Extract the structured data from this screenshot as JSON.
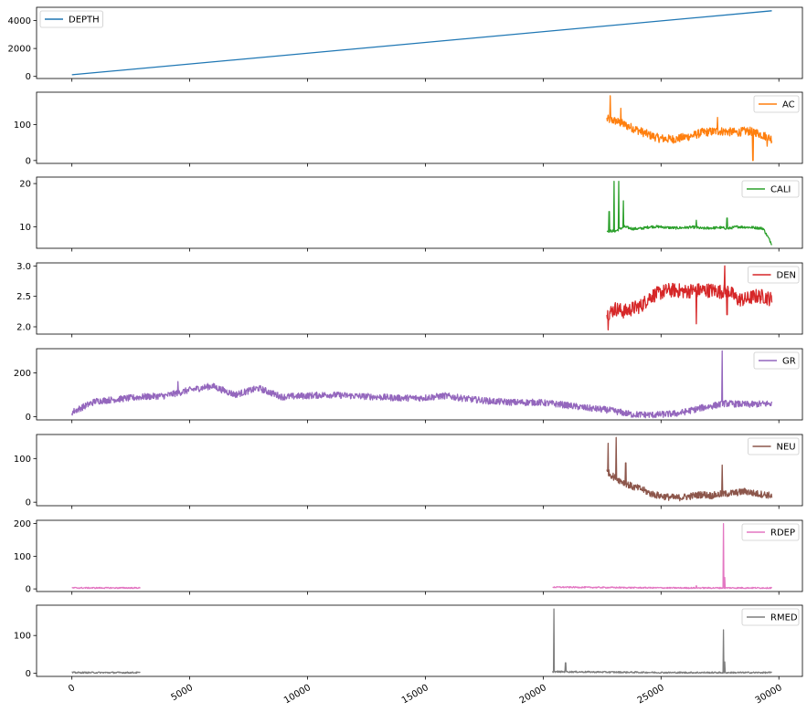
{
  "chart_data": [
    {
      "type": "line",
      "series": [
        {
          "name": "DEPTH",
          "color": "#1f77b4",
          "x": [
            0,
            29700
          ],
          "y": [
            120,
            4700
          ]
        }
      ],
      "xlim": [
        -1500,
        31000
      ],
      "ylim": [
        -150,
        4950
      ],
      "yticks": [
        {
          "value": 0,
          "label": "0"
        },
        {
          "value": 2000,
          "label": "2000"
        },
        {
          "value": 4000,
          "label": "4000"
        }
      ],
      "legend_loc": "upper left"
    },
    {
      "type": "line",
      "series": [
        {
          "name": "AC",
          "color": "#ff7f0e",
          "x_range": [
            22700,
            29700
          ],
          "y_base": [
            115,
            110,
            100,
            90,
            80,
            70,
            62,
            60,
            60,
            65,
            70,
            78,
            80,
            82,
            80,
            78,
            82,
            80,
            70,
            60
          ],
          "noise": 12,
          "spikes": [
            [
              22850,
              180
            ],
            [
              23300,
              145
            ],
            [
              27400,
              120
            ],
            [
              28900,
              0
            ],
            [
              29500,
              40
            ]
          ]
        }
      ],
      "xlim": [
        -1500,
        31000
      ],
      "ylim": [
        -8,
        190
      ],
      "yticks": [
        {
          "value": 0,
          "label": "0"
        },
        {
          "value": 100,
          "label": "100"
        }
      ],
      "legend_loc": "upper right"
    },
    {
      "type": "line",
      "series": [
        {
          "name": "CALI",
          "color": "#2ca02c",
          "x_range": [
            22700,
            29700
          ],
          "y_base": [
            9,
            9,
            10,
            9.5,
            9.6,
            10,
            10,
            9.8,
            9.7,
            9.8,
            9.9,
            9.6,
            9.7,
            9.8,
            9.6,
            10,
            9.9,
            9.8,
            9.6,
            6
          ],
          "noise": 0.3,
          "spikes": [
            [
              22800,
              13.5
            ],
            [
              23000,
              20.5
            ],
            [
              23200,
              20.5
            ],
            [
              23400,
              16
            ],
            [
              26500,
              11.5
            ],
            [
              27800,
              12
            ]
          ]
        }
      ],
      "xlim": [
        -1500,
        31000
      ],
      "ylim": [
        5,
        21.5
      ],
      "yticks": [
        {
          "value": 10,
          "label": "10"
        },
        {
          "value": 20,
          "label": "20"
        }
      ],
      "legend_loc": "upper right"
    },
    {
      "type": "line",
      "series": [
        {
          "name": "DEN",
          "color": "#d62728",
          "x_range": [
            22700,
            29700
          ],
          "y_base": [
            2.2,
            2.3,
            2.25,
            2.3,
            2.35,
            2.5,
            2.55,
            2.6,
            2.6,
            2.58,
            2.6,
            2.6,
            2.6,
            2.58,
            2.6,
            2.45,
            2.45,
            2.5,
            2.5,
            2.45
          ],
          "noise": 0.12,
          "spikes": [
            [
              22750,
              1.95
            ],
            [
              27700,
              3.0
            ],
            [
              26500,
              2.05
            ],
            [
              27800,
              2.2
            ]
          ]
        }
      ],
      "xlim": [
        -1500,
        31000
      ],
      "ylim": [
        1.88,
        3.05
      ],
      "yticks": [
        {
          "value": 2.0,
          "label": "2.0"
        },
        {
          "value": 2.5,
          "label": "2.5"
        },
        {
          "value": 3.0,
          "label": "3.0"
        }
      ],
      "legend_loc": "upper right"
    },
    {
      "type": "line",
      "series": [
        {
          "name": "GR",
          "color": "#9467bd",
          "x_range": [
            0,
            29700
          ],
          "y_base": [
            20,
            70,
            80,
            90,
            95,
            120,
            140,
            100,
            130,
            90,
            95,
            100,
            95,
            90,
            85,
            85,
            95,
            80,
            70,
            65,
            65,
            55,
            40,
            30,
            10,
            8,
            15,
            40,
            60,
            55,
            60
          ],
          "noise": 15,
          "spikes": [
            [
              27600,
              300
            ],
            [
              4500,
              160
            ]
          ]
        }
      ],
      "xlim": [
        -1500,
        31000
      ],
      "ylim": [
        -15,
        310
      ],
      "yticks": [
        {
          "value": 0,
          "label": "0"
        },
        {
          "value": 200,
          "label": "200"
        }
      ],
      "legend_loc": "upper right"
    },
    {
      "type": "line",
      "series": [
        {
          "name": "NEU",
          "color": "#8c564b",
          "x_range": [
            22700,
            29700
          ],
          "y_base": [
            70,
            55,
            45,
            35,
            30,
            20,
            15,
            12,
            10,
            12,
            15,
            18,
            15,
            18,
            20,
            22,
            25,
            20,
            18,
            15
          ],
          "noise": 8,
          "spikes": [
            [
              22750,
              135
            ],
            [
              23100,
              148
            ],
            [
              23500,
              90
            ],
            [
              27600,
              85
            ]
          ]
        }
      ],
      "xlim": [
        -1500,
        31000
      ],
      "ylim": [
        -8,
        155
      ],
      "yticks": [
        {
          "value": 0,
          "label": "0"
        },
        {
          "value": 100,
          "label": "100"
        }
      ],
      "legend_loc": "upper right"
    },
    {
      "type": "line",
      "series": [
        {
          "name": "RDEP",
          "color": "#e377c2",
          "segments": [
            [
              0,
              2900
            ],
            [
              20400,
              29700
            ]
          ],
          "y_base": [
            3,
            3,
            3,
            4,
            3,
            3,
            4,
            4,
            5,
            6,
            5,
            4,
            3,
            3,
            3
          ],
          "noise": 2,
          "spikes": [
            [
              27650,
              200
            ],
            [
              27700,
              35
            ],
            [
              26500,
              10
            ]
          ]
        }
      ],
      "xlim": [
        -1500,
        31000
      ],
      "ylim": [
        -8,
        210
      ],
      "yticks": [
        {
          "value": 0,
          "label": "0"
        },
        {
          "value": 100,
          "label": "100"
        },
        {
          "value": 200,
          "label": "200"
        }
      ],
      "legend_loc": "upper right"
    },
    {
      "type": "line",
      "series": [
        {
          "name": "RMED",
          "color": "#7f7f7f",
          "segments": [
            [
              0,
              2900
            ],
            [
              20400,
              29700
            ]
          ],
          "y_base": [
            2,
            2,
            2,
            3,
            2,
            2,
            3,
            4,
            5,
            5,
            4,
            3,
            2,
            2,
            2
          ],
          "noise": 2,
          "spikes": [
            [
              20450,
              170
            ],
            [
              20950,
              28
            ],
            [
              27650,
              115
            ],
            [
              27700,
              30
            ]
          ]
        }
      ],
      "xlim": [
        -1500,
        31000
      ],
      "ylim": [
        -8,
        180
      ],
      "yticks": [
        {
          "value": 0,
          "label": "0"
        },
        {
          "value": 100,
          "label": "100"
        }
      ],
      "legend_loc": "upper right"
    }
  ],
  "xticks": [
    {
      "value": 0,
      "label": "0"
    },
    {
      "value": 5000,
      "label": "5000"
    },
    {
      "value": 10000,
      "label": "10000"
    },
    {
      "value": 15000,
      "label": "15000"
    },
    {
      "value": 20000,
      "label": "20000"
    },
    {
      "value": 25000,
      "label": "25000"
    },
    {
      "value": 30000,
      "label": "30000"
    }
  ]
}
